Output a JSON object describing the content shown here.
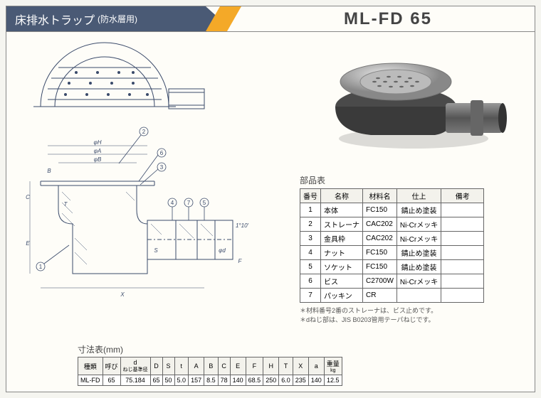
{
  "header": {
    "title_main": "床排水トラップ",
    "title_sub": "(防水層用)",
    "model": "ML-FD 65"
  },
  "parts_table": {
    "title": "部品表",
    "columns": [
      "番号",
      "名称",
      "材料名",
      "仕上",
      "備考"
    ],
    "rows": [
      [
        "1",
        "本体",
        "FC150",
        "錆止め塗装",
        ""
      ],
      [
        "2",
        "ストレーナ",
        "CAC202",
        "Ni-Crメッキ",
        ""
      ],
      [
        "3",
        "金具枠",
        "CAC202",
        "Ni-Crメッキ",
        ""
      ],
      [
        "4",
        "ナット",
        "FC150",
        "錆止め塗装",
        ""
      ],
      [
        "5",
        "ソケット",
        "FC150",
        "錆止め塗装",
        ""
      ],
      [
        "6",
        "ビス",
        "C2700W",
        "Ni-Crメッキ",
        ""
      ],
      [
        "7",
        "パッキン",
        "CR",
        "",
        ""
      ]
    ]
  },
  "notes": {
    "line1": "＊材料番号2番のストレーナは、ビス止めです。",
    "line2": "＊dねじ部は、JIS B0203管用テーパねじです。"
  },
  "dims_table": {
    "title": "寸法表(mm)",
    "columns": [
      "種類",
      "呼び",
      "d\nねじ基準径",
      "D",
      "S",
      "t",
      "A",
      "B",
      "C",
      "E",
      "F",
      "H",
      "T",
      "X",
      "a",
      "重量\nkg"
    ],
    "row": [
      "ML-FD",
      "65",
      "75.184",
      "65",
      "50",
      "5.0",
      "157",
      "8.5",
      "78",
      "140",
      "68.5",
      "250",
      "6.0",
      "235",
      "140",
      "12.5"
    ]
  },
  "diagram": {
    "callouts": [
      "1",
      "2",
      "3",
      "4",
      "5",
      "6",
      "7"
    ],
    "dim_labels": [
      "φH",
      "φA",
      "φB",
      "B",
      "C",
      "E",
      "T",
      "X",
      "S",
      "F",
      "φd",
      "1°10′"
    ]
  }
}
